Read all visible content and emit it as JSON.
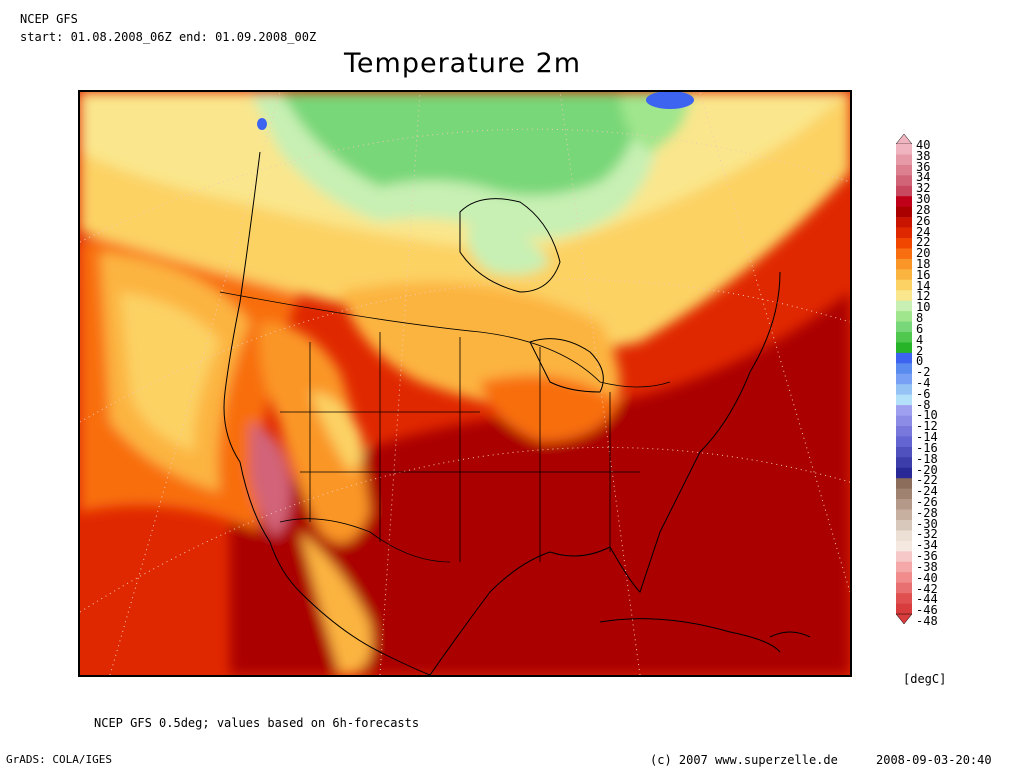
{
  "header": {
    "model": "NCEP GFS",
    "period": "start: 01.08.2008_06Z end: 01.09.2008_00Z",
    "title": "Temperature 2m"
  },
  "footer": {
    "note": "NCEP GFS 0.5deg; values based on 6h-forecasts",
    "grads": "GrADS: COLA/IGES",
    "copyright": "(c) 2007 www.superzelle.de",
    "timestamp": "2008-09-03-20:40"
  },
  "colorbar": {
    "unit": "[degC]",
    "levels": [
      "40",
      "38",
      "36",
      "34",
      "32",
      "30",
      "28",
      "26",
      "24",
      "22",
      "20",
      "18",
      "16",
      "14",
      "12",
      "10",
      "8",
      "6",
      "4",
      "2",
      "0",
      "-2",
      "-4",
      "-6",
      "-8",
      "-10",
      "-12",
      "-14",
      "-16",
      "-18",
      "-20",
      "-22",
      "-24",
      "-26",
      "-28",
      "-30",
      "-32",
      "-34",
      "-36",
      "-38",
      "-40",
      "-42",
      "-44",
      "-46",
      "-48"
    ],
    "colors": [
      "#f0b4c0",
      "#e69aa8",
      "#dc8090",
      "#d26478",
      "#c84860",
      "#c00018",
      "#aa0000",
      "#c81400",
      "#e02800",
      "#f04600",
      "#f86e10",
      "#fa9628",
      "#fcb440",
      "#fcd264",
      "#fae68c",
      "#c8f0b4",
      "#a0e68c",
      "#78d778",
      "#50c850",
      "#28b428",
      "#3c64f0",
      "#5a8cf0",
      "#78a0f5",
      "#96c3f5",
      "#b4e1fa",
      "#a0a0f0",
      "#8c8ce6",
      "#7878dc",
      "#6464d2",
      "#5050be",
      "#3c3caa",
      "#282896",
      "#8c6c5a",
      "#a08270",
      "#b49888",
      "#c8b0a0",
      "#d8c8bc",
      "#ecdfd4",
      "#f4e8e0",
      "#f7c8c8",
      "#f4a8a8",
      "#f08c8c",
      "#e87070",
      "#e05050",
      "#d83c3c"
    ]
  }
}
